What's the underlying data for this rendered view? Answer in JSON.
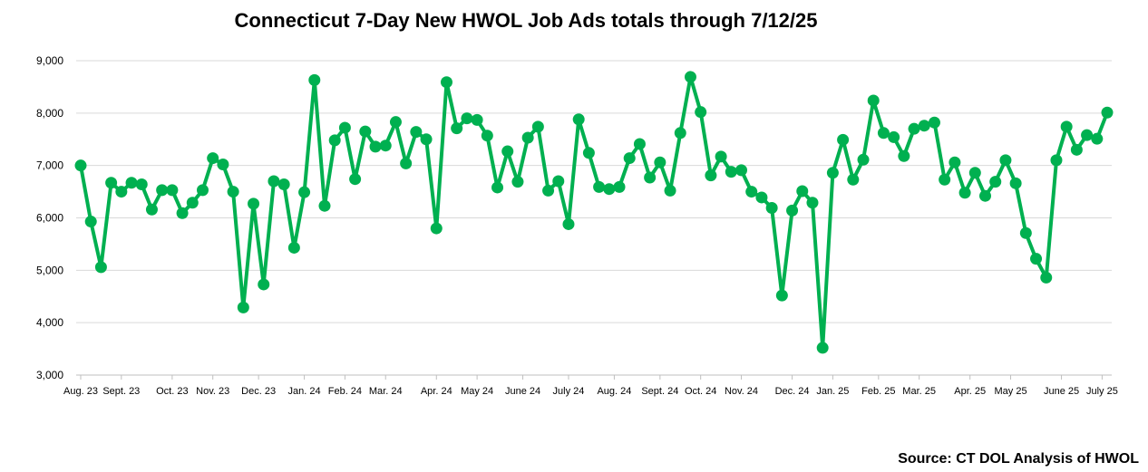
{
  "chart_data": {
    "type": "line",
    "title": "Connecticut 7-Day New HWOL Job Ads totals through 7/12/25",
    "source": "Source: CT DOL Analysis of HWOL",
    "ylim": [
      3000,
      9000
    ],
    "yticks": [
      "3,000",
      "4,000",
      "5,000",
      "6,000",
      "7,000",
      "8,000",
      "9,000"
    ],
    "ytick_values": [
      3000,
      4000,
      5000,
      6000,
      7000,
      8000,
      9000
    ],
    "grid": true,
    "color": "#00B050",
    "x_labels": [
      {
        "label": "Aug. 23",
        "index": 0
      },
      {
        "label": "Sept. 23",
        "index": 4
      },
      {
        "label": "Oct. 23",
        "index": 9
      },
      {
        "label": "Nov. 23",
        "index": 13
      },
      {
        "label": "Dec. 23",
        "index": 17.5
      },
      {
        "label": "Jan. 24",
        "index": 22
      },
      {
        "label": "Feb. 24",
        "index": 26
      },
      {
        "label": "Mar. 24",
        "index": 30
      },
      {
        "label": "Apr. 24",
        "index": 35
      },
      {
        "label": "May 24",
        "index": 39
      },
      {
        "label": "June 24",
        "index": 43.5
      },
      {
        "label": "July 24",
        "index": 48
      },
      {
        "label": "Aug. 24",
        "index": 52.5
      },
      {
        "label": "Sept. 24",
        "index": 57
      },
      {
        "label": "Oct. 24",
        "index": 61
      },
      {
        "label": "Nov. 24",
        "index": 65
      },
      {
        "label": "Dec. 24",
        "index": 70
      },
      {
        "label": "Jan. 25",
        "index": 74
      },
      {
        "label": "Feb. 25",
        "index": 78.5
      },
      {
        "label": "Mar. 25",
        "index": 82.5
      },
      {
        "label": "Apr. 25",
        "index": 87.5
      },
      {
        "label": "May 25",
        "index": 91.5
      },
      {
        "label": "June 25",
        "index": 96.5
      },
      {
        "label": "July 25",
        "index": 100.5
      }
    ],
    "values": [
      7000,
      5930,
      5060,
      6670,
      6500,
      6670,
      6640,
      6160,
      6530,
      6530,
      6090,
      6290,
      6530,
      7140,
      7020,
      6500,
      4290,
      6270,
      4730,
      6700,
      6640,
      5430,
      6490,
      8630,
      6230,
      7480,
      7720,
      6740,
      7650,
      7360,
      7380,
      7830,
      7040,
      7640,
      7500,
      5800,
      8590,
      7710,
      7900,
      7870,
      7570,
      6580,
      7270,
      6690,
      7530,
      7740,
      6520,
      6700,
      5880,
      7880,
      7240,
      6590,
      6550,
      6590,
      7140,
      7410,
      6770,
      7060,
      6520,
      7620,
      8690,
      8020,
      6810,
      7170,
      6880,
      6910,
      6500,
      6390,
      6190,
      4520,
      6140,
      6510,
      6290,
      3520,
      6860,
      7490,
      6730,
      7110,
      8240,
      7620,
      7540,
      7180,
      7700,
      7760,
      7820,
      6730,
      7060,
      6480,
      6860,
      6420,
      6690,
      7100,
      6660,
      5710,
      5220,
      4860,
      7100,
      7740,
      7300,
      7580,
      7510,
      8010
    ]
  }
}
